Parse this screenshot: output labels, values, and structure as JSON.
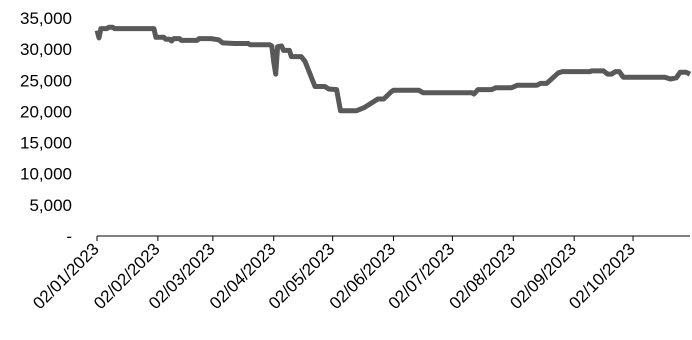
{
  "colors": {
    "line": "#595959",
    "axis": "#000000",
    "background": "#ffffff"
  },
  "chart_data": {
    "type": "line",
    "title": "",
    "xlabel": "",
    "ylabel": "",
    "legend": "none",
    "grid": false,
    "x_range": [
      "2023-01-02",
      "2023-10-31"
    ],
    "ylim": [
      0,
      35000
    ],
    "y_ticks": [
      {
        "value": 0,
        "label": "-"
      },
      {
        "value": 5000,
        "label": "5,000"
      },
      {
        "value": 10000,
        "label": "10,000"
      },
      {
        "value": 15000,
        "label": "15,000"
      },
      {
        "value": 20000,
        "label": "20,000"
      },
      {
        "value": 25000,
        "label": "25,000"
      },
      {
        "value": 30000,
        "label": "30,000"
      },
      {
        "value": 35000,
        "label": "35,000"
      }
    ],
    "x_ticks": [
      {
        "date": "2023-01-02",
        "label": "02/01/2023"
      },
      {
        "date": "2023-02-02",
        "label": "02/02/2023"
      },
      {
        "date": "2023-03-02",
        "label": "02/03/2023"
      },
      {
        "date": "2023-04-02",
        "label": "02/04/2023"
      },
      {
        "date": "2023-05-02",
        "label": "02/05/2023"
      },
      {
        "date": "2023-06-02",
        "label": "02/06/2023"
      },
      {
        "date": "2023-07-02",
        "label": "02/07/2023"
      },
      {
        "date": "2023-08-02",
        "label": "02/08/2023"
      },
      {
        "date": "2023-09-02",
        "label": "02/09/2023"
      },
      {
        "date": "2023-10-02",
        "label": "02/10/2023"
      }
    ],
    "series": [
      {
        "points": [
          [
            "2023-01-02",
            33000
          ],
          [
            "2023-01-03",
            31800
          ],
          [
            "2023-01-04",
            33300
          ],
          [
            "2023-01-07",
            33300
          ],
          [
            "2023-01-08",
            33500
          ],
          [
            "2023-01-10",
            33500
          ],
          [
            "2023-01-11",
            33300
          ],
          [
            "2023-01-31",
            33300
          ],
          [
            "2023-02-01",
            31900
          ],
          [
            "2023-02-05",
            31900
          ],
          [
            "2023-02-06",
            31600
          ],
          [
            "2023-02-08",
            31600
          ],
          [
            "2023-02-09",
            31300
          ],
          [
            "2023-02-10",
            31700
          ],
          [
            "2023-02-13",
            31700
          ],
          [
            "2023-02-14",
            31400
          ],
          [
            "2023-02-22",
            31400
          ],
          [
            "2023-02-23",
            31700
          ],
          [
            "2023-03-01",
            31700
          ],
          [
            "2023-03-05",
            31500
          ],
          [
            "2023-03-07",
            31000
          ],
          [
            "2023-03-13",
            30900
          ],
          [
            "2023-03-20",
            30900
          ],
          [
            "2023-03-21",
            30700
          ],
          [
            "2023-03-31",
            30700
          ],
          [
            "2023-04-01",
            30500
          ],
          [
            "2023-04-02",
            28000
          ],
          [
            "2023-04-03",
            26000
          ],
          [
            "2023-04-04",
            30400
          ],
          [
            "2023-04-06",
            30500
          ],
          [
            "2023-04-07",
            29800
          ],
          [
            "2023-04-10",
            29800
          ],
          [
            "2023-04-11",
            28800
          ],
          [
            "2023-04-16",
            28800
          ],
          [
            "2023-04-18",
            28000
          ],
          [
            "2023-04-23",
            24000
          ],
          [
            "2023-04-28",
            24000
          ],
          [
            "2023-04-30",
            23600
          ],
          [
            "2023-05-04",
            23500
          ],
          [
            "2023-05-06",
            20100
          ],
          [
            "2023-05-14",
            20100
          ],
          [
            "2023-05-18",
            20600
          ],
          [
            "2023-05-21",
            21200
          ],
          [
            "2023-05-25",
            22000
          ],
          [
            "2023-05-28",
            22000
          ],
          [
            "2023-06-01",
            23200
          ],
          [
            "2023-06-02",
            23400
          ],
          [
            "2023-06-15",
            23400
          ],
          [
            "2023-06-17",
            23000
          ],
          [
            "2023-07-12",
            23000
          ],
          [
            "2023-07-13",
            22800
          ],
          [
            "2023-07-15",
            23500
          ],
          [
            "2023-07-22",
            23500
          ],
          [
            "2023-07-24",
            23800
          ],
          [
            "2023-08-01",
            23800
          ],
          [
            "2023-08-04",
            24200
          ],
          [
            "2023-08-14",
            24200
          ],
          [
            "2023-08-16",
            24500
          ],
          [
            "2023-08-19",
            24500
          ],
          [
            "2023-08-25",
            26200
          ],
          [
            "2023-08-27",
            26400
          ],
          [
            "2023-09-10",
            26400
          ],
          [
            "2023-09-11",
            26500
          ],
          [
            "2023-09-17",
            26500
          ],
          [
            "2023-09-19",
            26000
          ],
          [
            "2023-09-21",
            26000
          ],
          [
            "2023-09-23",
            26400
          ],
          [
            "2023-09-25",
            26400
          ],
          [
            "2023-09-27",
            25500
          ],
          [
            "2023-10-18",
            25500
          ],
          [
            "2023-10-21",
            25200
          ],
          [
            "2023-10-24",
            25400
          ],
          [
            "2023-10-26",
            26300
          ],
          [
            "2023-10-29",
            26300
          ],
          [
            "2023-10-31",
            26000
          ]
        ]
      }
    ]
  }
}
